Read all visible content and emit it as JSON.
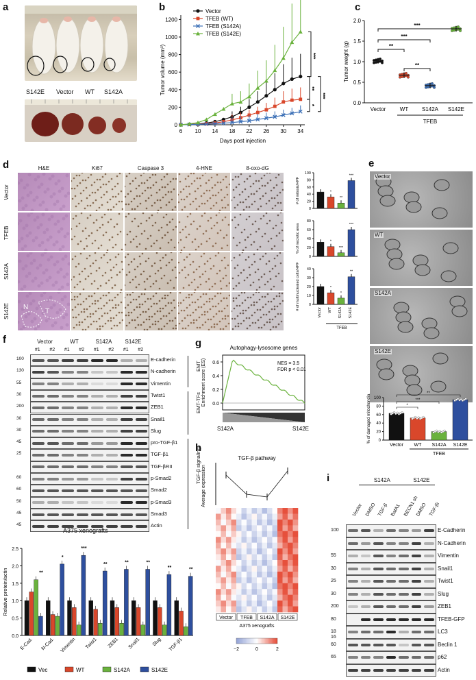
{
  "labels": {
    "a": "a",
    "b": "b",
    "c": "c",
    "d": "d",
    "e": "e",
    "f": "f",
    "g": "g",
    "h": "h",
    "i": "i"
  },
  "panel_a": {
    "mice_labels": [
      "S142E",
      "Vector",
      "WT",
      "S142A"
    ],
    "tumor_labels": [
      "S142E",
      "Vector",
      "WT",
      "S142A"
    ]
  },
  "panel_b": {
    "chart_data": {
      "type": "line",
      "xlabel": "Days post injection",
      "ylabel": "Tumor volume (mm³)",
      "x": [
        6,
        8,
        10,
        12,
        14,
        16,
        18,
        20,
        22,
        24,
        26,
        28,
        30,
        32,
        34
      ],
      "xticks": [
        6,
        10,
        14,
        18,
        22,
        26,
        30,
        34
      ],
      "yticks": [
        0,
        200,
        400,
        600,
        800,
        1000,
        1200
      ],
      "ylim": [
        0,
        1250
      ],
      "xlim": [
        6,
        35
      ],
      "series": [
        {
          "name": "Vector",
          "color": "#111111",
          "values": [
            0,
            5,
            10,
            20,
            35,
            60,
            90,
            140,
            200,
            260,
            330,
            400,
            470,
            520,
            550
          ]
        },
        {
          "name": "TFEB (WT)",
          "color": "#d9472b",
          "values": [
            0,
            3,
            8,
            12,
            20,
            35,
            55,
            80,
            110,
            140,
            170,
            210,
            260,
            280,
            290
          ]
        },
        {
          "name": "TFEB (S142A)",
          "color": "#3b6fb6",
          "values": [
            0,
            2,
            5,
            8,
            12,
            18,
            25,
            35,
            45,
            60,
            75,
            90,
            110,
            130,
            150
          ]
        },
        {
          "name": "TFEB (S142E)",
          "color": "#6ab23d",
          "values": [
            0,
            10,
            25,
            60,
            120,
            180,
            240,
            260,
            320,
            420,
            500,
            620,
            760,
            940,
            1060
          ]
        }
      ],
      "significance": [
        "***",
        "***",
        "**",
        "*"
      ]
    }
  },
  "panel_c": {
    "chart_data": {
      "type": "scatter",
      "ylabel": "Tumor weight (g)",
      "categories": [
        "Vector",
        "WT",
        "S142A",
        "S142E"
      ],
      "values": [
        1.02,
        0.67,
        0.42,
        1.8
      ],
      "colors": [
        "#111111",
        "#d9472b",
        "#3b6fb6",
        "#6ab23d"
      ],
      "yticks": [
        0,
        0.5,
        1.0,
        1.5,
        2.0
      ],
      "ylim": [
        0,
        2.0
      ],
      "group_label": "TFEB",
      "significance": [
        "***",
        "***",
        "**",
        "**"
      ]
    }
  },
  "panel_d": {
    "columns": [
      "H&E",
      "Ki67",
      "Caspase 3",
      "4-HNE",
      "8-oxo-dG"
    ],
    "rows": [
      "Vector",
      "TFEB",
      "S142A",
      "S142E"
    ],
    "he_annot": [
      "N",
      "T"
    ],
    "charts": [
      {
        "ylabel": "# of mitosis/HPF",
        "values": [
          46,
          32,
          15,
          78
        ],
        "ylim": [
          0,
          100
        ],
        "yticks": [
          0,
          20,
          40,
          60,
          80,
          100
        ],
        "stars": [
          "",
          "*",
          "**",
          "***"
        ]
      },
      {
        "ylabel": "% of necrotic area",
        "values": [
          32,
          22,
          8,
          60
        ],
        "ylim": [
          0,
          80
        ],
        "yticks": [
          0,
          20,
          40,
          60,
          80
        ],
        "stars": [
          "",
          "*",
          "***",
          "***"
        ]
      },
      {
        "ylabel": "# of multinucleated cells/HPF",
        "values": [
          20,
          13,
          7,
          31
        ],
        "ylim": [
          0,
          40
        ],
        "yticks": [
          0,
          10,
          20,
          30,
          40
        ],
        "stars": [
          "",
          "*",
          "*",
          "**"
        ]
      }
    ],
    "bar_colors": [
      "#111111",
      "#d9472b",
      "#6ab23d",
      "#2e4f9e"
    ],
    "xcats": [
      "Vector",
      "WT",
      "S142A",
      "S142E"
    ],
    "group_label": "TFEB"
  },
  "panel_e": {
    "image_labels": [
      "Vector",
      "WT",
      "S142A",
      "S142E"
    ],
    "chart_data": {
      "type": "bar",
      "ylabel": "% of damaged mitochondia",
      "categories": [
        "Vector",
        "WT",
        "S142A",
        "S142E"
      ],
      "values": [
        63,
        52,
        20,
        95
      ],
      "colors": [
        "#111111",
        "#d9472b",
        "#6ab23d",
        "#2e4f9e"
      ],
      "yticks": [
        0,
        20,
        40,
        60,
        80,
        100
      ],
      "ylim": [
        0,
        100
      ],
      "group_label": "TFEB",
      "significance": [
        "**",
        "***",
        "*"
      ]
    }
  },
  "panel_f": {
    "groups": [
      "Vector",
      "WT",
      "S142A",
      "S142E"
    ],
    "lanes": [
      "#1",
      "#2",
      "#1",
      "#2",
      "#1",
      "#2",
      "#1",
      "#2"
    ],
    "proteins": [
      "E-cadherin",
      "N-cadherin",
      "Vimentin",
      "Twist1",
      "ZEB1",
      "Snail1",
      "Slug",
      "pro-TGF-β1",
      "TGF-β1",
      "TGF-βRII",
      "p-Smad2",
      "Smad2",
      "p-Smad3",
      "Smad3",
      "Actin"
    ],
    "mw": [
      "100",
      "130",
      "55",
      "30",
      "200",
      "30",
      "30",
      "45",
      "25",
      "",
      "60",
      "60",
      "50",
      "45",
      "45"
    ],
    "side_groups": [
      "EMT",
      "EMT-TFs",
      "TGF-β signaling"
    ],
    "caption": "A375 xenografts",
    "chart_data": {
      "type": "bar",
      "ylabel": "Relative protein/actin",
      "categories": [
        "E-Cad.",
        "N-Cad.",
        "Vimentin",
        "Twist1",
        "ZEB1",
        "Snail1",
        "Slug",
        "TGF-β1"
      ],
      "yticks": [
        0,
        0.5,
        1.0,
        1.5,
        2.0,
        2.5
      ],
      "ylim": [
        0,
        2.5
      ],
      "series": [
        {
          "name": "Vec",
          "color": "#111111",
          "values": [
            1,
            1,
            1,
            1,
            1,
            1,
            1,
            1
          ]
        },
        {
          "name": "WT",
          "color": "#d9472b",
          "values": [
            1.25,
            0.6,
            0.8,
            0.75,
            0.8,
            0.8,
            0.8,
            0.7
          ]
        },
        {
          "name": "S142A",
          "color": "#6ab23d",
          "values": [
            1.6,
            0.55,
            0.3,
            0.35,
            0.35,
            0.3,
            0.3,
            0.25
          ]
        },
        {
          "name": "S142E",
          "color": "#2e4f9e",
          "values": [
            0.55,
            2.05,
            2.3,
            1.85,
            1.9,
            1.9,
            1.75,
            1.7
          ]
        }
      ],
      "stars": [
        "**",
        "*",
        "***",
        "**",
        "**",
        "**",
        "**",
        "**"
      ]
    },
    "legend": [
      "Vec",
      "WT",
      "S142A",
      "S142E"
    ]
  },
  "panel_g": {
    "chart_data": {
      "type": "line",
      "title": "Autophagy-lysosome genes",
      "ylabel": "Enrichment score (ES)",
      "yticks": [
        0.0,
        0.2,
        0.4,
        0.6
      ],
      "ylim": [
        -0.1,
        0.7
      ],
      "annotation": "NES = 3.5",
      "annotation2": "FDR p < 0.01",
      "x_left": "S142A",
      "x_right": "S142E"
    }
  },
  "panel_h": {
    "chart_data": {
      "type": "heatmap",
      "title": "TGF-β pathway",
      "ylabel": "Average expression",
      "groups": [
        "Vector",
        "TFEB",
        "S142A",
        "S142E"
      ],
      "caption": "A375 xenografts",
      "scale_ticks": [
        "−2",
        "0",
        "2"
      ],
      "trend": [
        0.3,
        -0.4,
        -0.5,
        0.45
      ]
    }
  },
  "panel_i": {
    "header_groups": [
      "S142A",
      "S142E"
    ],
    "lanes": [
      "Vector",
      "DMSO",
      "TGF-β",
      "BafA1",
      "BECN1 sh",
      "DMSO",
      "TGF-βi"
    ],
    "proteins": [
      "E-Cadherin",
      "N-Cadherin",
      "Vimentin",
      "Snail1",
      "Twist1",
      "Slug",
      "ZEB1",
      "TFEB-GFP",
      "LC3",
      "Beclin 1",
      "p62",
      "Actin"
    ],
    "mw": [
      "100",
      "",
      "55",
      "30",
      "25",
      "30",
      "200",
      "80",
      "18",
      "60",
      "65",
      ""
    ],
    "mw_extra": "16"
  }
}
